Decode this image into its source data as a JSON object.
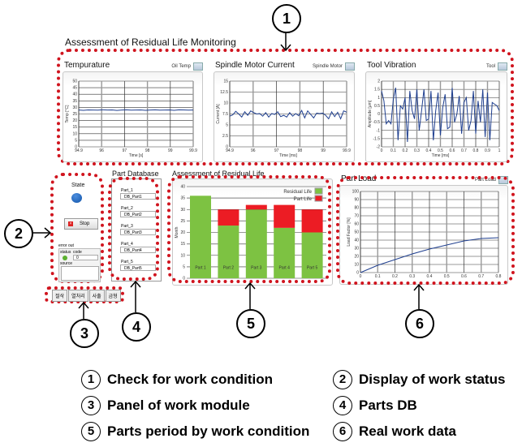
{
  "title": "Assessment of Residual Life Monitoring",
  "annotations": [
    "1",
    "2",
    "3",
    "4",
    "5",
    "6"
  ],
  "legend": [
    {
      "num": "1",
      "text": "Check for work condition"
    },
    {
      "num": "2",
      "text": "Display of work status"
    },
    {
      "num": "3",
      "text": "Panel of work module"
    },
    {
      "num": "4",
      "text": "Parts DB"
    },
    {
      "num": "5",
      "text": "Parts period by work condition"
    },
    {
      "num": "6",
      "text": "Real work data"
    }
  ],
  "state": {
    "label": "State",
    "stop": "Stop",
    "error_out": "error out",
    "status": "status",
    "code": "code",
    "code_value": "0",
    "source": "source"
  },
  "part_db": {
    "title": "Part Database",
    "items": [
      {
        "label": "Part_1",
        "value": "DB_Part1"
      },
      {
        "label": "Part_2",
        "value": "DB_Part2"
      },
      {
        "label": "Part_3",
        "value": "DB_Part3"
      },
      {
        "label": "Part_4",
        "value": "DB_Part4"
      },
      {
        "label": "Part_5",
        "value": "DB_Part5"
      }
    ]
  },
  "tabs": [
    "절삭",
    "열처리",
    "사출",
    "금형"
  ],
  "colors": {
    "annotation": "#d0141e",
    "line": "#1f3f8f",
    "residual": "#7dc242",
    "partlife": "#ec1c24"
  },
  "chart_data": [
    {
      "type": "line",
      "title": "Tempurature",
      "legend": "Oil Temp",
      "xlabel": "Time [s]",
      "ylabel": "Temp [°C]",
      "xlim": [
        94.9,
        99.9
      ],
      "ylim": [
        0,
        50
      ],
      "xticks": [
        "94.9",
        "96",
        "97",
        "98",
        "99",
        "99.9"
      ],
      "yticks": [
        0,
        5,
        10,
        15,
        20,
        25,
        30,
        35,
        40,
        45,
        50
      ],
      "values": [
        28,
        27.8,
        28.1,
        28,
        27.9,
        28.2,
        28,
        28.1,
        27.7,
        28,
        28.2,
        27.9,
        28,
        28.1,
        27.8,
        28,
        28.2,
        27.9,
        28,
        28.1,
        27.8,
        28.2,
        28.1,
        27.9,
        28
      ]
    },
    {
      "type": "line",
      "title": "Spindle Motor Current",
      "legend": "Spindle Motor",
      "xlabel": "Time [ms]",
      "ylabel": "Current [A]",
      "xlim": [
        94.9,
        99.9
      ],
      "ylim": [
        0,
        15
      ],
      "xticks": [
        "94.9",
        "96",
        "97",
        "98",
        "99",
        "99.9"
      ],
      "yticks": [
        0,
        2.5,
        5,
        7.5,
        10,
        12.5,
        15
      ],
      "values": [
        7.0,
        7.3,
        8.1,
        7.5,
        6.8,
        8.0,
        7.2,
        8.2,
        7.8,
        7.5,
        7.6,
        7.0,
        7.8,
        6.8,
        7.6,
        7.4,
        8.0,
        6.9,
        7.2,
        6.8,
        7.8,
        7.0,
        7.6,
        7.1,
        8.3,
        6.6,
        8.2,
        7.4,
        6.6,
        7.7,
        7.6,
        7.7,
        7.2,
        6.4,
        8.0,
        6.9,
        7.9,
        6.4,
        8.2,
        7.9
      ]
    },
    {
      "type": "line",
      "title": "Tool Vibration",
      "legend": "Tool",
      "xlabel": "Time [ms]",
      "ylabel": "Amplitude [μm]",
      "xlim": [
        0,
        1
      ],
      "ylim": [
        -2,
        2
      ],
      "xticks": [
        "0",
        "0.1",
        "0.2",
        "0.3",
        "0.4",
        "0.5",
        "0.6",
        "0.7",
        "0.8",
        "0.9",
        "1"
      ],
      "yticks": [
        -2,
        -1.5,
        -1,
        -0.5,
        0,
        0.5,
        1,
        1.5,
        2
      ],
      "values": [
        1.4,
        0.8,
        -0.6,
        -0.4,
        -0.6,
        0.9,
        1.6,
        -1.6,
        0.5,
        0.3,
        1.0,
        -1.7,
        1.4,
        0.2,
        -0.3,
        1.5,
        -1.0,
        0.2,
        1.5,
        -0.4,
        -0.3,
        1.4,
        -1.6,
        0.2,
        1.3,
        -1.3,
        0.4,
        1.2,
        -0.9,
        -0.8,
        1.6,
        -0.5,
        0.0,
        1.1,
        -1.2,
        0.7,
        1.0,
        -1.0,
        -0.4,
        1.4,
        -1.2,
        0.8,
        -0.5,
        1.5,
        -1.4,
        1.3,
        -1.6,
        0.7,
        0.6,
        0.5,
        0.2
      ]
    },
    {
      "type": "bar",
      "stacked": true,
      "title": "Assessment of Residual Life",
      "ylabel": "Month",
      "ylim": [
        0,
        40
      ],
      "yticks": [
        0,
        5,
        10,
        15,
        20,
        25,
        30,
        35,
        40
      ],
      "categories": [
        "Part 1",
        "Part 2",
        "Part 3",
        "Part 4",
        "Part 5"
      ],
      "series": [
        {
          "name": "Residual Life",
          "values": [
            36,
            23,
            30,
            22,
            20
          ]
        },
        {
          "name": "Part Life",
          "values": [
            0,
            7,
            2,
            10,
            10
          ]
        }
      ],
      "legend": "top-right"
    },
    {
      "type": "line",
      "title": "Part Load",
      "legend": "Part Load",
      "ylabel": "Load Factor [%]",
      "xlim": [
        0,
        0.8
      ],
      "ylim": [
        0,
        100
      ],
      "xticks": [
        "0",
        "0.1",
        "0.2",
        "0.3",
        "0.4",
        "0.5",
        "0.6",
        "0.7",
        "0.8"
      ],
      "yticks": [
        0,
        10,
        20,
        30,
        40,
        50,
        60,
        70,
        80,
        90,
        100
      ],
      "x": [
        0,
        0.1,
        0.2,
        0.3,
        0.4,
        0.5,
        0.6,
        0.7,
        0.8
      ],
      "values": [
        0,
        9,
        16,
        23,
        29,
        34,
        39,
        42,
        43
      ]
    }
  ]
}
